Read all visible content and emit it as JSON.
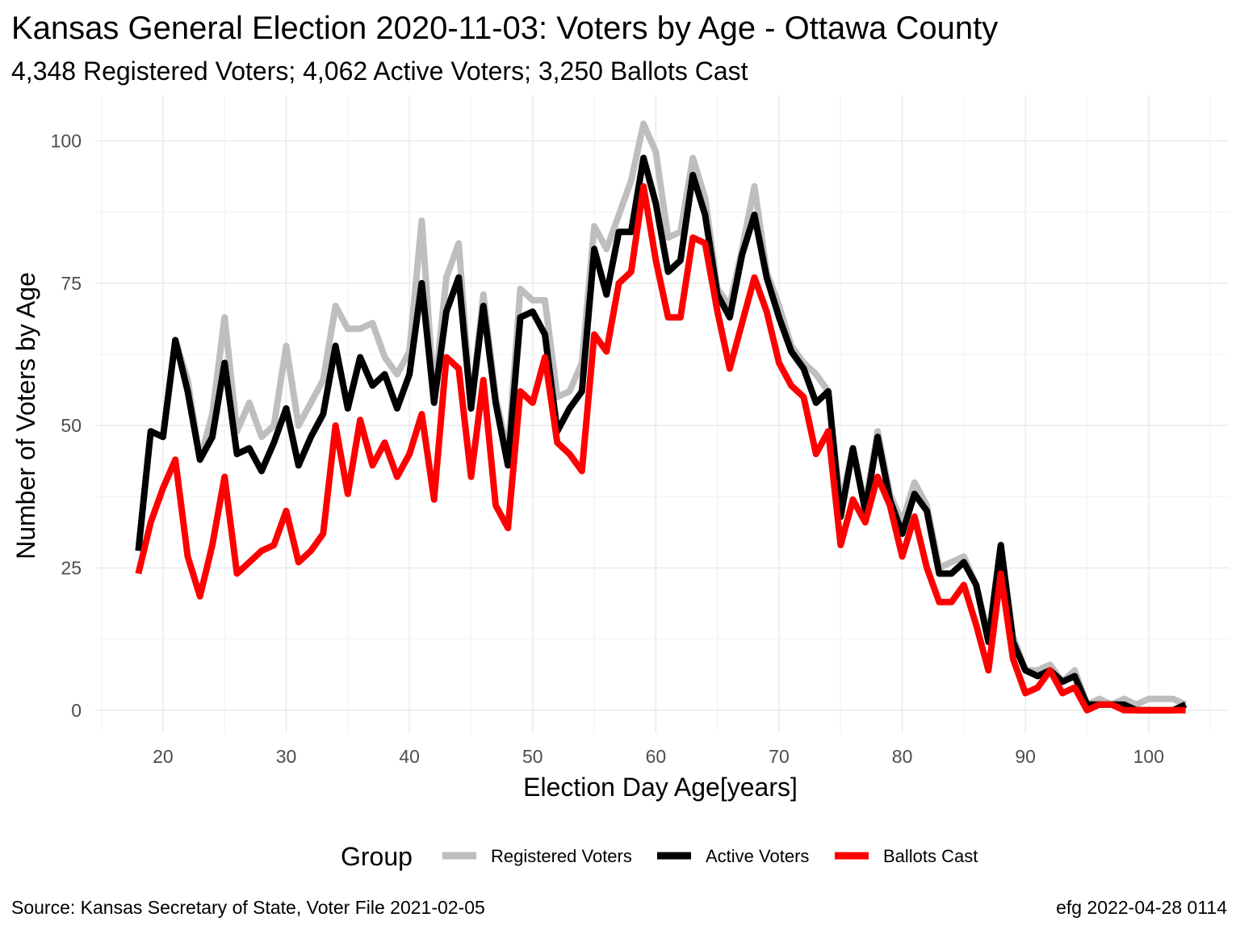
{
  "chart_data": {
    "type": "line",
    "title": "Kansas General Election 2020-11-03:  Voters by Age - Ottawa County",
    "subtitle": "4,348 Registered Voters; 4,062 Active Voters; 3,250 Ballots Cast",
    "xlabel": "Election Day Age[years]",
    "ylabel": "Number of Voters by Age",
    "xlim": [
      14.5,
      106.5
    ],
    "ylim": [
      -4,
      108
    ],
    "x_ticks": [
      20,
      30,
      40,
      50,
      60,
      70,
      80,
      90,
      100
    ],
    "y_ticks": [
      0,
      25,
      50,
      75,
      100
    ],
    "grid": true,
    "legend_title": "Group",
    "legend_position": "bottom",
    "caption_left": "Source:  Kansas Secretary of State, Voter File  2021-02-05",
    "caption_right": "efg 2022-04-28 0114",
    "x": [
      18,
      19,
      20,
      21,
      22,
      23,
      24,
      25,
      26,
      27,
      28,
      29,
      30,
      31,
      32,
      33,
      34,
      35,
      36,
      37,
      38,
      39,
      40,
      41,
      42,
      43,
      44,
      45,
      46,
      47,
      48,
      49,
      50,
      51,
      52,
      53,
      54,
      55,
      56,
      57,
      58,
      59,
      60,
      61,
      62,
      63,
      64,
      65,
      66,
      67,
      68,
      69,
      70,
      71,
      72,
      73,
      74,
      75,
      76,
      77,
      78,
      79,
      80,
      81,
      82,
      83,
      84,
      85,
      86,
      87,
      88,
      89,
      90,
      91,
      92,
      93,
      94,
      95,
      96,
      97,
      98,
      99,
      100,
      101,
      102,
      103
    ],
    "series": [
      {
        "name": "Registered Voters",
        "color": "#bebebe",
        "values": [
          28,
          49,
          48,
          65,
          58,
          44,
          52,
          69,
          49,
          54,
          48,
          50,
          64,
          50,
          54,
          58,
          71,
          67,
          67,
          68,
          62,
          59,
          63,
          86,
          55,
          76,
          82,
          53,
          73,
          55,
          45,
          74,
          72,
          72,
          55,
          56,
          61,
          85,
          81,
          87,
          93,
          103,
          98,
          83,
          84,
          97,
          90,
          74,
          71,
          81,
          92,
          77,
          71,
          64,
          61,
          59,
          56,
          36,
          46,
          36,
          49,
          38,
          33,
          40,
          36,
          25,
          26,
          27,
          22,
          13,
          29,
          13,
          7,
          7,
          8,
          5,
          7,
          1,
          2,
          1,
          2,
          1,
          2,
          2,
          2,
          1
        ],
        "name_key": "Registered Voters"
      },
      {
        "name": "Active Voters",
        "color": "#000000",
        "values": [
          28,
          49,
          48,
          65,
          56,
          44,
          48,
          61,
          45,
          46,
          42,
          47,
          53,
          43,
          48,
          52,
          64,
          53,
          62,
          57,
          59,
          53,
          59,
          75,
          54,
          70,
          76,
          53,
          71,
          54,
          43,
          69,
          70,
          66,
          49,
          53,
          56,
          81,
          73,
          84,
          84,
          97,
          89,
          77,
          79,
          94,
          87,
          73,
          69,
          80,
          87,
          76,
          69,
          63,
          60,
          54,
          56,
          34,
          46,
          35,
          48,
          37,
          31,
          38,
          35,
          24,
          24,
          26,
          22,
          12,
          29,
          12,
          7,
          6,
          7,
          5,
          6,
          1,
          1,
          1,
          1,
          0,
          0,
          0,
          0,
          1
        ]
      },
      {
        "name": "Ballots Cast",
        "color": "#ff0000",
        "values": [
          24,
          33,
          39,
          44,
          27,
          20,
          29,
          41,
          24,
          26,
          28,
          29,
          35,
          26,
          28,
          31,
          50,
          38,
          51,
          43,
          47,
          41,
          45,
          52,
          37,
          62,
          60,
          41,
          58,
          36,
          32,
          56,
          54,
          62,
          47,
          45,
          42,
          66,
          63,
          75,
          77,
          92,
          79,
          69,
          69,
          83,
          82,
          70,
          60,
          68,
          76,
          70,
          61,
          57,
          55,
          45,
          49,
          29,
          37,
          33,
          41,
          36,
          27,
          34,
          25,
          19,
          19,
          22,
          15,
          7,
          24,
          9,
          3,
          4,
          7,
          3,
          4,
          0,
          1,
          1,
          0,
          0,
          0,
          0,
          0,
          0
        ]
      }
    ]
  }
}
